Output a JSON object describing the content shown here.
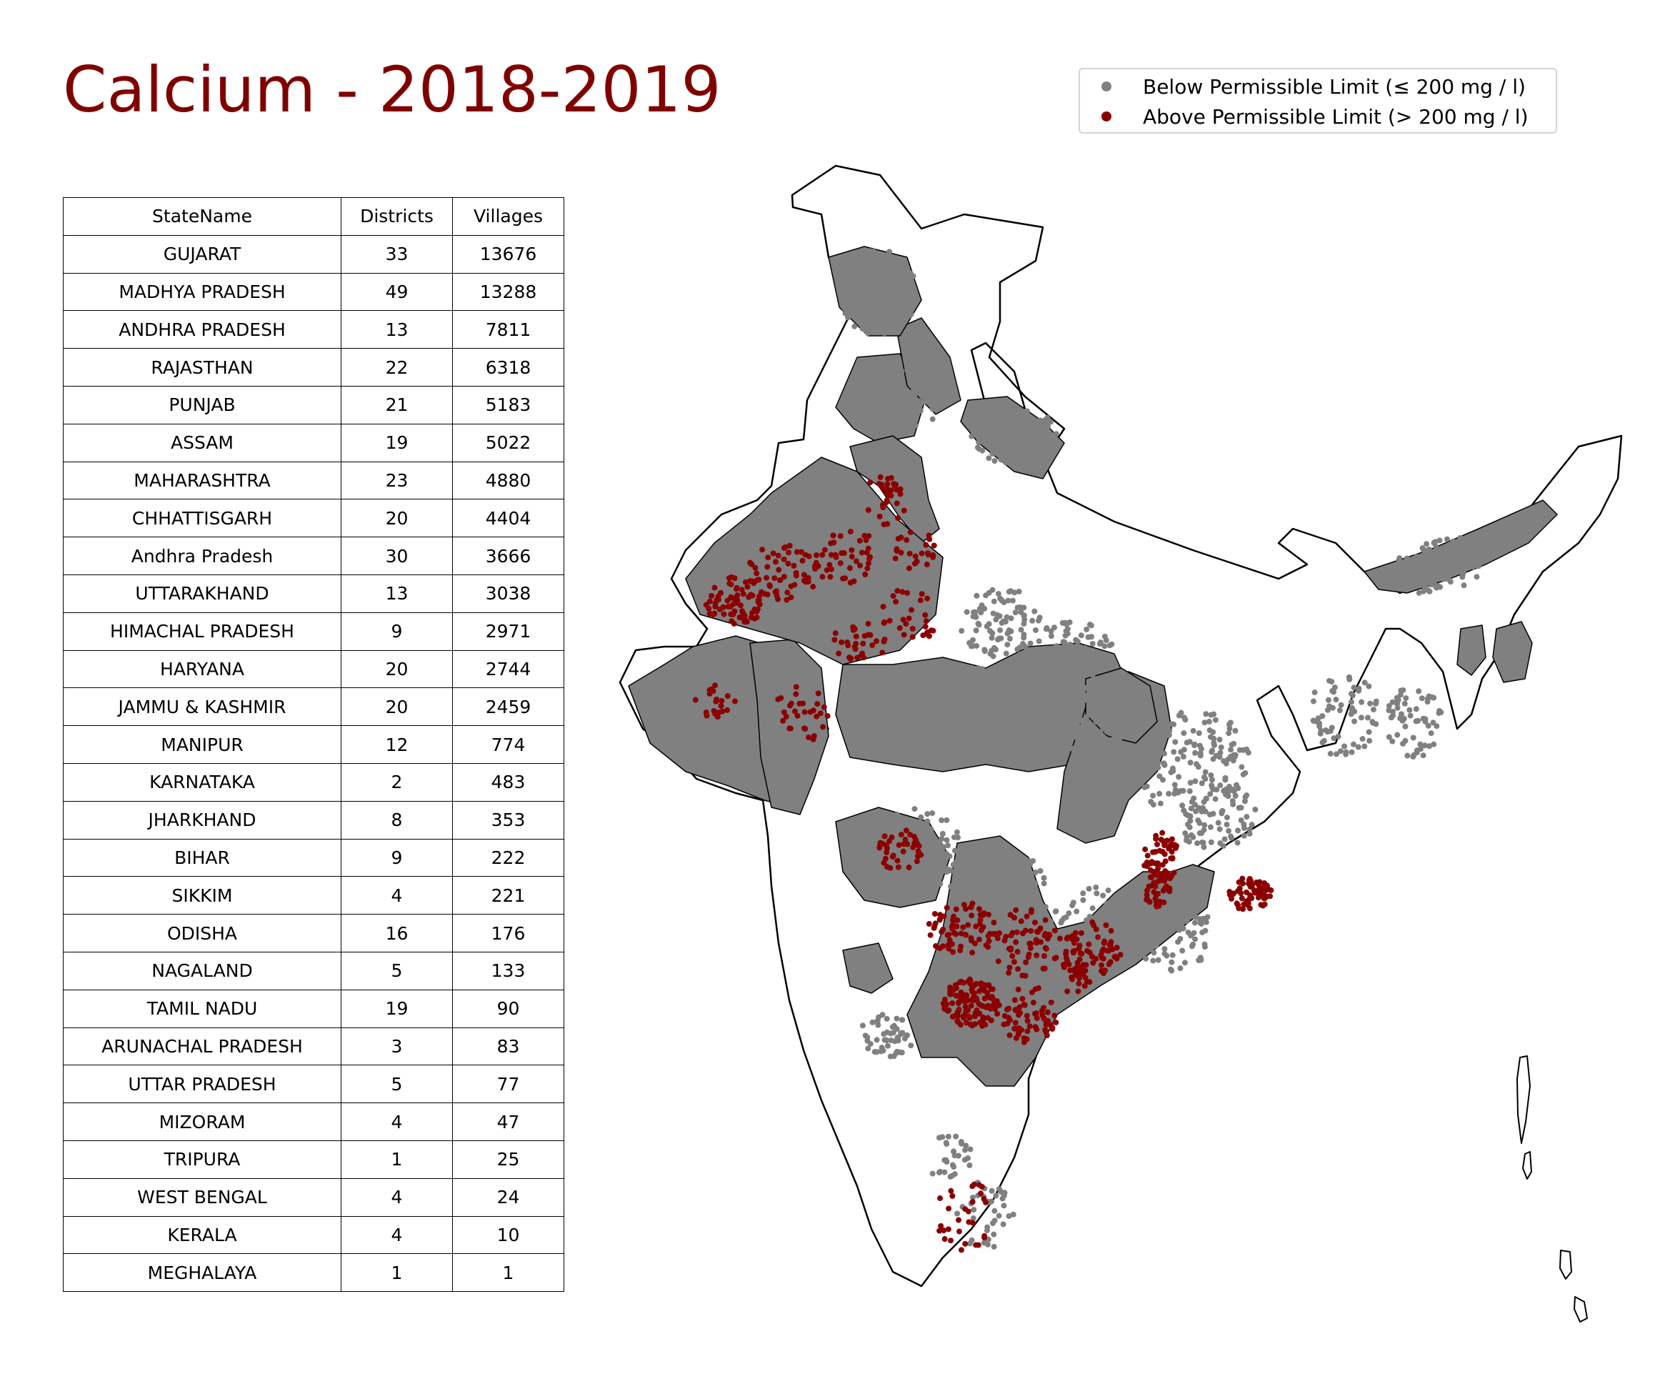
{
  "title": "Calcium - 2018-2019",
  "colors": {
    "title": "#800000",
    "below": "#808080",
    "above": "#8b0000",
    "outline": "#000000"
  },
  "legend": {
    "items": [
      {
        "label": "Below Permissible Limit (≤ 200 mg / l)",
        "color": "#808080"
      },
      {
        "label": "Above Permissible Limit (> 200 mg / l)",
        "color": "#8b0000"
      }
    ]
  },
  "table": {
    "headers": [
      "StateName",
      "Districts",
      "Villages"
    ],
    "rows": [
      [
        "GUJARAT",
        "33",
        "13676"
      ],
      [
        "MADHYA PRADESH",
        "49",
        "13288"
      ],
      [
        "ANDHRA PRADESH",
        "13",
        "7811"
      ],
      [
        "RAJASTHAN",
        "22",
        "6318"
      ],
      [
        "PUNJAB",
        "21",
        "5183"
      ],
      [
        "ASSAM",
        "19",
        "5022"
      ],
      [
        "MAHARASHTRA",
        "23",
        "4880"
      ],
      [
        "CHHATTISGARH",
        "20",
        "4404"
      ],
      [
        "Andhra Pradesh",
        "30",
        "3666"
      ],
      [
        "UTTARAKHAND",
        "13",
        "3038"
      ],
      [
        "HIMACHAL PRADESH",
        "9",
        "2971"
      ],
      [
        "HARYANA",
        "20",
        "2744"
      ],
      [
        "JAMMU & KASHMIR",
        "20",
        "2459"
      ],
      [
        "MANIPUR",
        "12",
        "774"
      ],
      [
        "KARNATAKA",
        "2",
        "483"
      ],
      [
        "JHARKHAND",
        "8",
        "353"
      ],
      [
        "BIHAR",
        "9",
        "222"
      ],
      [
        "SIKKIM",
        "4",
        "221"
      ],
      [
        "ODISHA",
        "16",
        "176"
      ],
      [
        "NAGALAND",
        "5",
        "133"
      ],
      [
        "TAMIL NADU",
        "19",
        "90"
      ],
      [
        "ARUNACHAL PRADESH",
        "3",
        "83"
      ],
      [
        "UTTAR PRADESH",
        "5",
        "77"
      ],
      [
        "MIZORAM",
        "4",
        "47"
      ],
      [
        "TRIPURA",
        "1",
        "25"
      ],
      [
        "WEST BENGAL",
        "4",
        "24"
      ],
      [
        "KERALA",
        "4",
        "10"
      ],
      [
        "MEGHALAYA",
        "1",
        "1"
      ]
    ]
  }
}
